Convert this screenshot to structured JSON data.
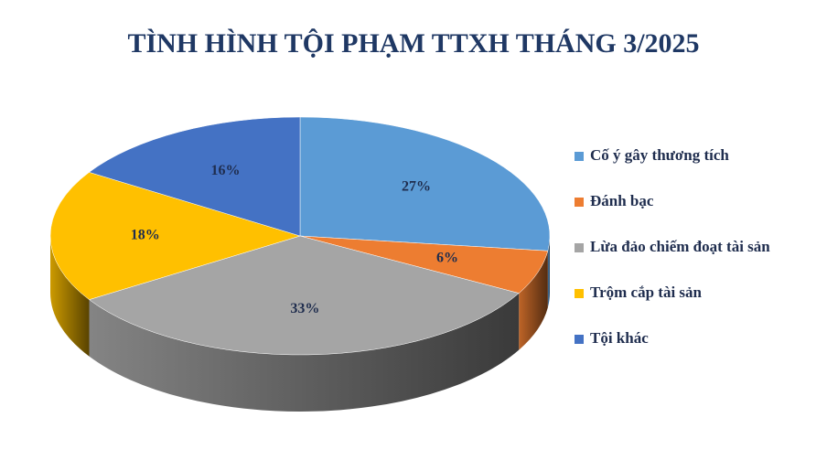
{
  "chart_data": {
    "type": "pie3d",
    "title": "TÌNH HÌNH TỘI PHẠM TTXH THÁNG 3/2025",
    "categories": [
      "Cố ý gây thương tích",
      "Đánh bạc",
      "Lừa đảo chiếm đoạt tài sản",
      "Trộm cắp tài sản",
      "Tội khác"
    ],
    "values": [
      27,
      6,
      33,
      18,
      16
    ],
    "value_labels": [
      "27%",
      "6%",
      "33%",
      "18%",
      "16%"
    ],
    "colors": [
      "#5b9bd5",
      "#ed7d31",
      "#a5a5a5",
      "#ffc000",
      "#4472c4"
    ],
    "legend": "right"
  }
}
